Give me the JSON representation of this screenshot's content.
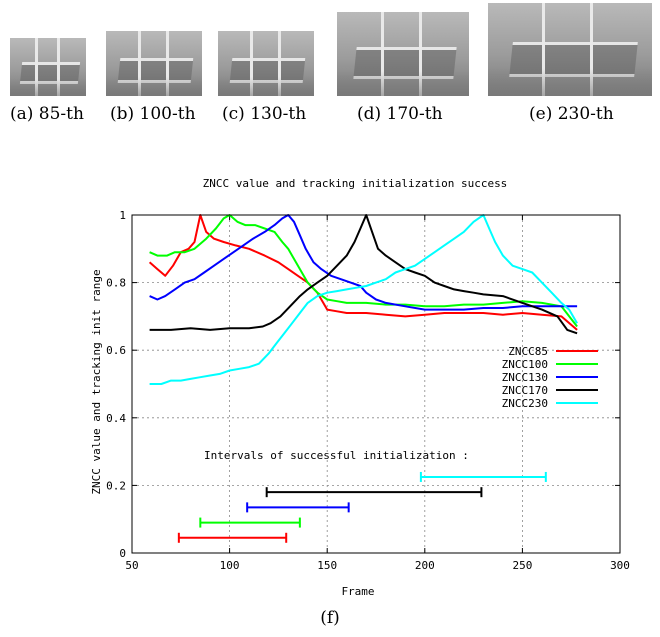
{
  "thumbnails": [
    {
      "caption": "(a) 85-th"
    },
    {
      "caption": "(b) 100-th"
    },
    {
      "caption": "(c) 130-th"
    },
    {
      "caption": "(d) 170-th"
    },
    {
      "caption": "(e) 230-th"
    }
  ],
  "figure_caption": "(f)",
  "chart_data": {
    "type": "line",
    "title": "ZNCC value and tracking initialization success",
    "xlabel": "Frame",
    "ylabel": "ZNCC value and tracking init range",
    "xlim": [
      50,
      300
    ],
    "ylim": [
      0,
      1
    ],
    "xticks": [
      50,
      100,
      150,
      200,
      250,
      300
    ],
    "yticks": [
      0,
      0.2,
      0.4,
      0.6,
      0.8,
      1
    ],
    "ytick_labels": [
      "0",
      "0.2",
      "0.4",
      "0.6",
      "0.8",
      "1"
    ],
    "grid": true,
    "legend_position": "right-middle",
    "annotation": "Intervals of successful initialization :",
    "series": [
      {
        "name": "ZNCC85",
        "color": "#ff0000",
        "points": [
          [
            59,
            0.86
          ],
          [
            63,
            0.84
          ],
          [
            67,
            0.82
          ],
          [
            71,
            0.85
          ],
          [
            75,
            0.89
          ],
          [
            79,
            0.9
          ],
          [
            82,
            0.92
          ],
          [
            85,
            1.0
          ],
          [
            88,
            0.95
          ],
          [
            92,
            0.93
          ],
          [
            97,
            0.92
          ],
          [
            103,
            0.91
          ],
          [
            110,
            0.9
          ],
          [
            118,
            0.88
          ],
          [
            125,
            0.86
          ],
          [
            130,
            0.84
          ],
          [
            135,
            0.82
          ],
          [
            140,
            0.8
          ],
          [
            145,
            0.77
          ],
          [
            148,
            0.74
          ],
          [
            150,
            0.72
          ],
          [
            155,
            0.715
          ],
          [
            160,
            0.71
          ],
          [
            170,
            0.71
          ],
          [
            180,
            0.705
          ],
          [
            190,
            0.7
          ],
          [
            200,
            0.705
          ],
          [
            210,
            0.71
          ],
          [
            220,
            0.71
          ],
          [
            230,
            0.71
          ],
          [
            240,
            0.705
          ],
          [
            250,
            0.71
          ],
          [
            260,
            0.705
          ],
          [
            270,
            0.7
          ],
          [
            278,
            0.66
          ]
        ]
      },
      {
        "name": "ZNCC100",
        "color": "#00ff00",
        "points": [
          [
            59,
            0.89
          ],
          [
            63,
            0.88
          ],
          [
            68,
            0.88
          ],
          [
            72,
            0.89
          ],
          [
            77,
            0.89
          ],
          [
            82,
            0.9
          ],
          [
            88,
            0.93
          ],
          [
            93,
            0.96
          ],
          [
            97,
            0.99
          ],
          [
            100,
            1.0
          ],
          [
            104,
            0.98
          ],
          [
            108,
            0.97
          ],
          [
            113,
            0.97
          ],
          [
            118,
            0.96
          ],
          [
            123,
            0.95
          ],
          [
            127,
            0.92
          ],
          [
            130,
            0.9
          ],
          [
            133,
            0.87
          ],
          [
            136,
            0.84
          ],
          [
            140,
            0.8
          ],
          [
            145,
            0.77
          ],
          [
            150,
            0.75
          ],
          [
            155,
            0.745
          ],
          [
            160,
            0.74
          ],
          [
            170,
            0.74
          ],
          [
            180,
            0.735
          ],
          [
            190,
            0.735
          ],
          [
            200,
            0.73
          ],
          [
            210,
            0.73
          ],
          [
            220,
            0.735
          ],
          [
            230,
            0.735
          ],
          [
            240,
            0.74
          ],
          [
            250,
            0.745
          ],
          [
            260,
            0.74
          ],
          [
            270,
            0.73
          ],
          [
            278,
            0.67
          ]
        ]
      },
      {
        "name": "ZNCC130",
        "color": "#0000ff",
        "points": [
          [
            59,
            0.76
          ],
          [
            63,
            0.75
          ],
          [
            67,
            0.76
          ],
          [
            72,
            0.78
          ],
          [
            77,
            0.8
          ],
          [
            82,
            0.81
          ],
          [
            87,
            0.83
          ],
          [
            92,
            0.85
          ],
          [
            97,
            0.87
          ],
          [
            102,
            0.89
          ],
          [
            107,
            0.91
          ],
          [
            112,
            0.93
          ],
          [
            118,
            0.95
          ],
          [
            123,
            0.97
          ],
          [
            127,
            0.99
          ],
          [
            130,
            1.0
          ],
          [
            133,
            0.98
          ],
          [
            136,
            0.94
          ],
          [
            139,
            0.9
          ],
          [
            143,
            0.86
          ],
          [
            147,
            0.84
          ],
          [
            152,
            0.82
          ],
          [
            157,
            0.81
          ],
          [
            162,
            0.8
          ],
          [
            167,
            0.79
          ],
          [
            170,
            0.77
          ],
          [
            175,
            0.75
          ],
          [
            180,
            0.74
          ],
          [
            190,
            0.73
          ],
          [
            200,
            0.72
          ],
          [
            210,
            0.72
          ],
          [
            220,
            0.72
          ],
          [
            230,
            0.725
          ],
          [
            240,
            0.725
          ],
          [
            250,
            0.73
          ],
          [
            260,
            0.73
          ],
          [
            270,
            0.73
          ],
          [
            278,
            0.73
          ]
        ]
      },
      {
        "name": "ZNCC170",
        "color": "#000000",
        "points": [
          [
            59,
            0.66
          ],
          [
            70,
            0.66
          ],
          [
            80,
            0.665
          ],
          [
            90,
            0.66
          ],
          [
            100,
            0.665
          ],
          [
            110,
            0.665
          ],
          [
            117,
            0.67
          ],
          [
            121,
            0.68
          ],
          [
            126,
            0.7
          ],
          [
            131,
            0.73
          ],
          [
            136,
            0.76
          ],
          [
            140,
            0.78
          ],
          [
            145,
            0.8
          ],
          [
            150,
            0.82
          ],
          [
            155,
            0.85
          ],
          [
            160,
            0.88
          ],
          [
            164,
            0.92
          ],
          [
            167,
            0.96
          ],
          [
            170,
            1.0
          ],
          [
            173,
            0.95
          ],
          [
            176,
            0.9
          ],
          [
            180,
            0.88
          ],
          [
            185,
            0.86
          ],
          [
            190,
            0.84
          ],
          [
            195,
            0.83
          ],
          [
            200,
            0.82
          ],
          [
            205,
            0.8
          ],
          [
            210,
            0.79
          ],
          [
            215,
            0.78
          ],
          [
            220,
            0.775
          ],
          [
            225,
            0.77
          ],
          [
            230,
            0.765
          ],
          [
            240,
            0.76
          ],
          [
            250,
            0.74
          ],
          [
            260,
            0.72
          ],
          [
            268,
            0.7
          ],
          [
            273,
            0.66
          ],
          [
            278,
            0.65
          ]
        ]
      },
      {
        "name": "ZNCC230",
        "color": "#00ffff",
        "points": [
          [
            59,
            0.5
          ],
          [
            65,
            0.5
          ],
          [
            70,
            0.51
          ],
          [
            75,
            0.51
          ],
          [
            80,
            0.515
          ],
          [
            85,
            0.52
          ],
          [
            90,
            0.525
          ],
          [
            95,
            0.53
          ],
          [
            100,
            0.54
          ],
          [
            105,
            0.545
          ],
          [
            110,
            0.55
          ],
          [
            115,
            0.56
          ],
          [
            120,
            0.59
          ],
          [
            124,
            0.62
          ],
          [
            128,
            0.65
          ],
          [
            132,
            0.68
          ],
          [
            136,
            0.71
          ],
          [
            140,
            0.74
          ],
          [
            145,
            0.76
          ],
          [
            150,
            0.77
          ],
          [
            155,
            0.775
          ],
          [
            160,
            0.78
          ],
          [
            165,
            0.785
          ],
          [
            170,
            0.79
          ],
          [
            175,
            0.8
          ],
          [
            180,
            0.81
          ],
          [
            185,
            0.83
          ],
          [
            190,
            0.84
          ],
          [
            195,
            0.85
          ],
          [
            200,
            0.87
          ],
          [
            205,
            0.89
          ],
          [
            210,
            0.91
          ],
          [
            215,
            0.93
          ],
          [
            220,
            0.95
          ],
          [
            225,
            0.98
          ],
          [
            230,
            1.0
          ],
          [
            233,
            0.96
          ],
          [
            236,
            0.92
          ],
          [
            240,
            0.88
          ],
          [
            245,
            0.85
          ],
          [
            250,
            0.84
          ],
          [
            255,
            0.83
          ],
          [
            260,
            0.8
          ],
          [
            265,
            0.77
          ],
          [
            270,
            0.74
          ],
          [
            274,
            0.72
          ],
          [
            278,
            0.68
          ]
        ]
      }
    ],
    "intervals": [
      {
        "series": "ZNCC85",
        "color": "#ff0000",
        "start": 74,
        "end": 129
      },
      {
        "series": "ZNCC100",
        "color": "#00ff00",
        "start": 85,
        "end": 136
      },
      {
        "series": "ZNCC130",
        "color": "#0000ff",
        "start": 109,
        "end": 161
      },
      {
        "series": "ZNCC170",
        "color": "#000000",
        "start": 119,
        "end": 229
      },
      {
        "series": "ZNCC230",
        "color": "#00ffff",
        "start": 198,
        "end": 262
      }
    ]
  }
}
